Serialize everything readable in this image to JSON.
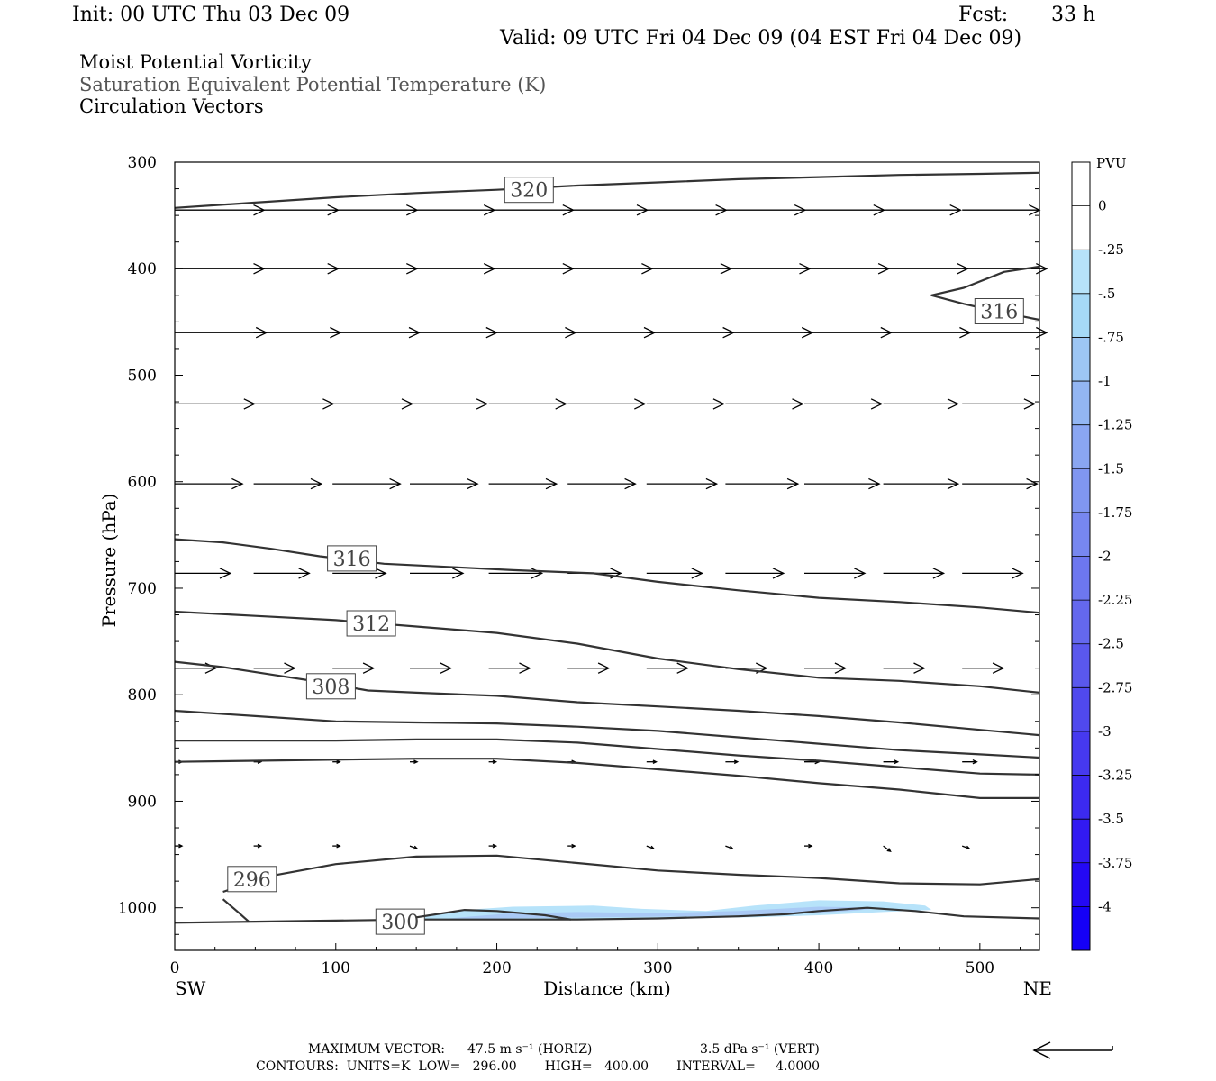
{
  "header": {
    "init": "Init: 00 UTC Thu 03 Dec 09",
    "fcst_label": "Fcst:",
    "fcst_value": "33 h",
    "valid": "Valid: 09 UTC Fri 04 Dec 09 (04 EST Fri 04 Dec 09)"
  },
  "fields": {
    "line1": "Moist Potential Vorticity",
    "line2": "Saturation Equivalent Potential Temperature (K)",
    "line3": "Circulation Vectors"
  },
  "colors": {
    "contour": "#333333",
    "mpv_fill_light": "#b7e3fa",
    "mpv_fill_mid": "#a9c9f5"
  },
  "footer": {
    "max_vector_label": "MAXIMUM VECTOR:",
    "max_vector_horiz": "47.5 m s⁻¹ (HORIZ)",
    "max_vector_vert": "3.5 dPa s⁻¹ (VERT)",
    "contours_line": "CONTOURS:  UNITS=K  LOW=   296.00       HIGH=   400.00       INTERVAL=     4.0000"
  },
  "chart_data": {
    "type": "cross-section",
    "xlabel": "Distance (km)",
    "ylabel": "Pressure (hPa)",
    "x_endpoints": {
      "left": "SW",
      "right": "NE"
    },
    "xlim": [
      0,
      537
    ],
    "ylim": [
      1040,
      300
    ],
    "xticks": [
      0,
      100,
      200,
      300,
      400,
      500
    ],
    "yticks": [
      300,
      400,
      500,
      600,
      700,
      800,
      900,
      1000
    ],
    "colorbar": {
      "unit": "PVU",
      "labels": [
        "0",
        "-.25",
        "-.5",
        "-.75",
        "-1",
        "-1.25",
        "-1.5",
        "-1.75",
        "-2",
        "-2.25",
        "-2.5",
        "-2.75",
        "-3",
        "-3.25",
        "-3.5",
        "-3.75",
        "-4"
      ],
      "colors": [
        "#ffffff",
        "#ffffff",
        "#b7e3fa",
        "#a6d9f7",
        "#9dc6f4",
        "#93b6f3",
        "#8aa6f2",
        "#8096f1",
        "#7787f0",
        "#6d77ef",
        "#6468ee",
        "#5a58ed",
        "#5049ee",
        "#4639ef",
        "#3c2af0",
        "#321af2",
        "#2409f4",
        "#1500f6"
      ]
    },
    "contours": [
      {
        "value": 320,
        "points": [
          [
            0,
            343
          ],
          [
            50,
            338
          ],
          [
            100,
            333
          ],
          [
            150,
            329
          ],
          [
            200,
            326
          ],
          [
            250,
            322
          ],
          [
            300,
            319
          ],
          [
            350,
            316
          ],
          [
            400,
            314
          ],
          [
            450,
            312
          ],
          [
            500,
            311
          ],
          [
            537,
            310
          ]
        ],
        "label": "320",
        "label_at": [
          220,
          326
        ]
      },
      {
        "value": 316,
        "points": [
          [
            537,
            448
          ],
          [
            510,
            440
          ],
          [
            490,
            433
          ],
          [
            470,
            425
          ],
          [
            490,
            418
          ],
          [
            515,
            403
          ],
          [
            537,
            398
          ]
        ],
        "label": "316",
        "label_at": [
          512,
          440
        ]
      },
      {
        "value": 316,
        "points": [
          [
            0,
            654
          ],
          [
            30,
            657
          ],
          [
            60,
            663
          ],
          [
            90,
            670
          ],
          [
            130,
            677
          ],
          [
            170,
            680
          ],
          [
            210,
            683
          ],
          [
            260,
            686
          ],
          [
            300,
            694
          ],
          [
            350,
            702
          ],
          [
            400,
            709
          ],
          [
            450,
            713
          ],
          [
            500,
            718
          ],
          [
            537,
            723
          ]
        ],
        "label": "316",
        "label_at": [
          110,
          672
        ]
      },
      {
        "value": 312,
        "points": [
          [
            0,
            722
          ],
          [
            50,
            726
          ],
          [
            100,
            730
          ],
          [
            150,
            736
          ],
          [
            200,
            742
          ],
          [
            250,
            752
          ],
          [
            300,
            766
          ],
          [
            350,
            776
          ],
          [
            400,
            784
          ],
          [
            450,
            787
          ],
          [
            500,
            792
          ],
          [
            537,
            798
          ]
        ],
        "label": "312",
        "label_at": [
          122,
          733
        ]
      },
      {
        "value": 308,
        "points": [
          [
            0,
            769
          ],
          [
            30,
            774
          ],
          [
            60,
            781
          ],
          [
            90,
            788
          ],
          [
            120,
            796
          ],
          [
            150,
            798
          ],
          [
            200,
            801
          ],
          [
            250,
            807
          ],
          [
            300,
            811
          ],
          [
            350,
            815
          ],
          [
            400,
            820
          ],
          [
            450,
            826
          ],
          [
            500,
            833
          ],
          [
            537,
            838
          ]
        ],
        "label": "308",
        "label_at": [
          97,
          792
        ]
      },
      {
        "value": 304,
        "points": [
          [
            0,
            815
          ],
          [
            50,
            820
          ],
          [
            100,
            825
          ],
          [
            150,
            826
          ],
          [
            200,
            827
          ],
          [
            250,
            830
          ],
          [
            300,
            834
          ],
          [
            350,
            840
          ],
          [
            400,
            846
          ],
          [
            450,
            852
          ],
          [
            500,
            856
          ],
          [
            537,
            859
          ]
        ]
      },
      {
        "value": 300,
        "points": [
          [
            0,
            843
          ],
          [
            50,
            843
          ],
          [
            100,
            843
          ],
          [
            150,
            842
          ],
          [
            200,
            842
          ],
          [
            250,
            845
          ],
          [
            300,
            851
          ],
          [
            350,
            857
          ],
          [
            400,
            862
          ],
          [
            450,
            868
          ],
          [
            500,
            874
          ],
          [
            537,
            875
          ]
        ]
      },
      {
        "value": 296,
        "points": [
          [
            0,
            863
          ],
          [
            50,
            862
          ],
          [
            100,
            861
          ],
          [
            150,
            860
          ],
          [
            200,
            860
          ],
          [
            250,
            864
          ],
          [
            300,
            870
          ],
          [
            350,
            876
          ],
          [
            400,
            883
          ],
          [
            450,
            889
          ],
          [
            500,
            897
          ],
          [
            537,
            897
          ]
        ]
      },
      {
        "value": 296,
        "points": [
          [
            30,
            985
          ],
          [
            60,
            970
          ],
          [
            100,
            959
          ],
          [
            150,
            952
          ],
          [
            200,
            951
          ],
          [
            250,
            958
          ],
          [
            300,
            965
          ],
          [
            350,
            969
          ],
          [
            400,
            972
          ],
          [
            450,
            977
          ],
          [
            500,
            978
          ],
          [
            537,
            973
          ]
        ],
        "label": "296",
        "label_at": [
          48,
          973
        ]
      },
      {
        "value": 296,
        "points": [
          [
            46,
            1013
          ],
          [
            40,
            1005
          ],
          [
            30,
            992
          ]
        ]
      },
      {
        "value": 300,
        "points": [
          [
            0,
            1014
          ],
          [
            50,
            1013
          ],
          [
            100,
            1012
          ],
          [
            150,
            1011
          ],
          [
            200,
            1011
          ],
          [
            250,
            1011
          ],
          [
            300,
            1010
          ],
          [
            350,
            1008
          ],
          [
            380,
            1006
          ],
          [
            400,
            1003
          ],
          [
            430,
            1000
          ],
          [
            460,
            1003
          ],
          [
            490,
            1008
          ],
          [
            537,
            1010
          ]
        ],
        "label": "300",
        "label_at": [
          140,
          1013
        ]
      },
      {
        "value": 300,
        "points": [
          [
            150,
            1009
          ],
          [
            180,
            1002
          ],
          [
            200,
            1003
          ],
          [
            230,
            1007
          ],
          [
            246,
            1011
          ]
        ]
      }
    ],
    "mpv_regions": [
      {
        "level": "-.25",
        "points": [
          [
            150,
            1010
          ],
          [
            180,
            1002
          ],
          [
            210,
            999
          ],
          [
            260,
            998
          ],
          [
            290,
            1001
          ],
          [
            330,
            1003
          ],
          [
            360,
            998
          ],
          [
            400,
            993
          ],
          [
            440,
            994
          ],
          [
            466,
            998
          ],
          [
            470,
            1002
          ],
          [
            440,
            1004
          ],
          [
            400,
            1007
          ],
          [
            360,
            1009
          ],
          [
            300,
            1010
          ],
          [
            220,
            1011
          ],
          [
            170,
            1011
          ]
        ]
      },
      {
        "level": "-.5",
        "points": [
          [
            170,
            1010
          ],
          [
            210,
            1005
          ],
          [
            250,
            1004
          ],
          [
            300,
            1005
          ],
          [
            350,
            1003
          ],
          [
            400,
            999
          ],
          [
            440,
            1000
          ],
          [
            420,
            1003
          ],
          [
            380,
            1006
          ],
          [
            320,
            1008
          ],
          [
            260,
            1009
          ],
          [
            200,
            1010
          ]
        ]
      }
    ],
    "vectors": {
      "levels": [
        345,
        400,
        460,
        527,
        602,
        686,
        775,
        863,
        942
      ],
      "x": [
        0,
        49,
        98,
        146,
        195,
        244,
        293,
        342,
        391,
        440,
        489
      ],
      "u_rows": [
        [
          37,
          35,
          35,
          35,
          35,
          33,
          33,
          33,
          33,
          32,
          32
        ],
        [
          37,
          35,
          35,
          35,
          35,
          35,
          35,
          35,
          35,
          35,
          35
        ],
        [
          38,
          36,
          36,
          36,
          36,
          36,
          36,
          36,
          36,
          36,
          35
        ],
        [
          33,
          33,
          33,
          32,
          32,
          32,
          32,
          32,
          32,
          31,
          30
        ],
        [
          28,
          28,
          28,
          28,
          28,
          28,
          29,
          30,
          31,
          31,
          31
        ],
        [
          23,
          23,
          22,
          22,
          22,
          22,
          23,
          24,
          25,
          25,
          25
        ],
        [
          17,
          17,
          17,
          17,
          17,
          17,
          17,
          17,
          17,
          17,
          17
        ],
        [
          3,
          3,
          3,
          3,
          3,
          3,
          4,
          5,
          6,
          6,
          6
        ],
        [
          3,
          3,
          3,
          3,
          3,
          3,
          3,
          3,
          3,
          3,
          3
        ]
      ],
      "v_rows": [
        [
          0,
          0,
          0,
          0,
          0,
          0,
          0,
          0,
          0,
          0,
          0
        ],
        [
          0,
          0,
          0,
          0,
          0,
          0,
          0,
          0,
          0,
          0,
          0
        ],
        [
          0,
          0,
          0,
          0,
          0,
          0,
          0,
          0,
          0,
          0,
          0
        ],
        [
          0,
          0,
          0,
          0,
          0,
          0,
          0,
          0,
          0,
          0,
          0
        ],
        [
          0,
          0,
          0,
          0,
          0,
          0,
          0,
          0,
          0,
          0,
          0
        ],
        [
          0,
          0,
          0,
          0,
          0,
          0,
          0,
          0,
          0,
          0,
          0
        ],
        [
          0,
          0,
          0,
          0,
          0,
          0,
          0,
          0,
          0,
          0,
          0
        ],
        [
          0,
          0,
          0,
          0,
          0,
          0,
          0,
          0,
          0,
          0,
          0
        ],
        [
          0,
          0,
          0,
          -1,
          0,
          0,
          -1,
          -1,
          0,
          -2,
          -1
        ]
      ]
    }
  }
}
